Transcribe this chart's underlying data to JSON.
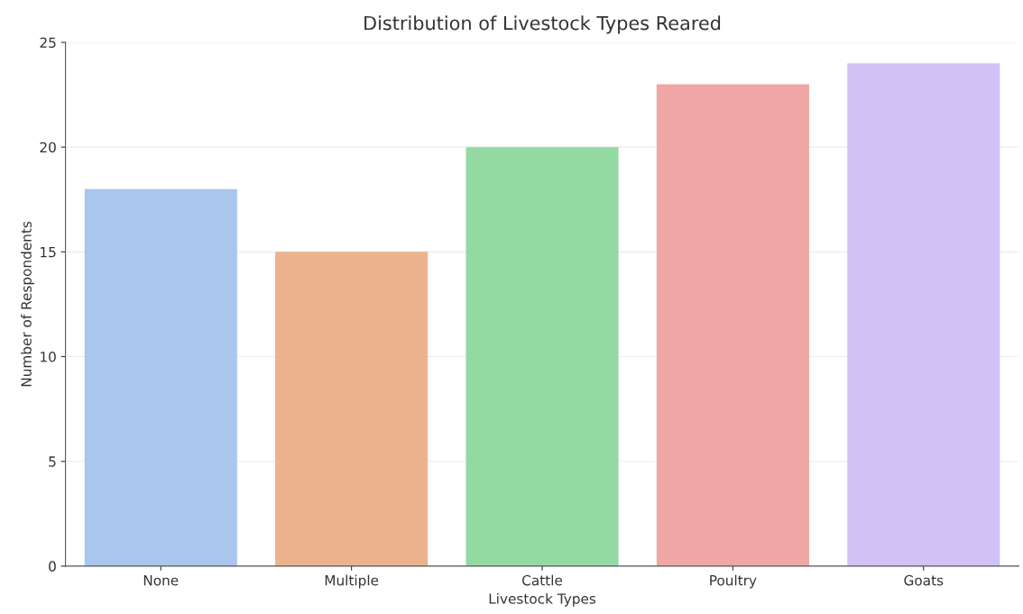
{
  "chart_data": {
    "type": "bar",
    "title": "Distribution of Livestock Types Reared",
    "xlabel": "Livestock Types",
    "ylabel": "Number of Respondents",
    "categories": [
      "None",
      "Multiple",
      "Cattle",
      "Poultry",
      "Goats"
    ],
    "values": [
      18,
      15,
      20,
      23,
      24
    ],
    "colors": [
      "#a9c6ec",
      "#ecb28e",
      "#93d9a2",
      "#efa6a4",
      "#d2c1f4"
    ],
    "ylim": [
      0,
      25
    ],
    "yticks": [
      0,
      5,
      10,
      15,
      20,
      25
    ],
    "grid": "y"
  }
}
